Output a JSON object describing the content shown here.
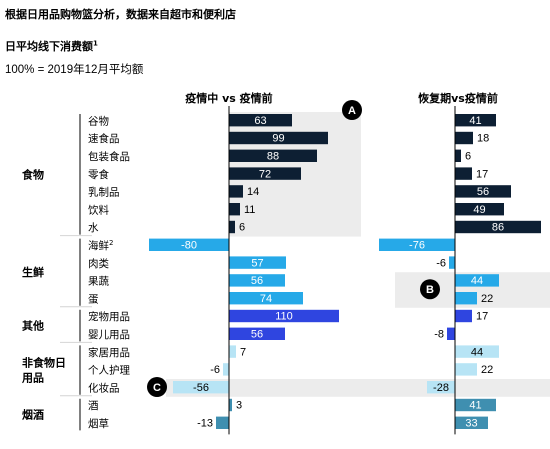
{
  "header": {
    "title": "根据日用品购物篮分析，数据来自超市和便利店",
    "subtitle_main": "日平均线下消费额",
    "subtitle_sup": "1",
    "baseline_note": "100% = 2019年12月平均额"
  },
  "chart_data": {
    "type": "bar",
    "orientation": "horizontal",
    "panels": [
      {
        "title": "疫情中 vs 疫情前",
        "series_key": "during"
      },
      {
        "title": "恢复期vs疫情前",
        "series_key": "recovery"
      }
    ],
    "groups": [
      {
        "name": "食物",
        "items": [
          {
            "label": "谷物",
            "sup": "",
            "during": 63,
            "recovery": 41
          },
          {
            "label": "速食品",
            "sup": "",
            "during": 99,
            "recovery": 18
          },
          {
            "label": "包装食品",
            "sup": "",
            "during": 88,
            "recovery": 6
          },
          {
            "label": "零食",
            "sup": "",
            "during": 72,
            "recovery": 17
          },
          {
            "label": "乳制品",
            "sup": "",
            "during": 14,
            "recovery": 56
          },
          {
            "label": "饮料",
            "sup": "",
            "during": 11,
            "recovery": 49
          },
          {
            "label": "水",
            "sup": "",
            "during": 6,
            "recovery": 86
          }
        ]
      },
      {
        "name": "生鲜",
        "items": [
          {
            "label": "海鲜",
            "sup": "2",
            "during": -80,
            "recovery": -76
          },
          {
            "label": "肉类",
            "sup": "",
            "during": 57,
            "recovery": -6
          },
          {
            "label": "果蔬",
            "sup": "",
            "during": 56,
            "recovery": 44
          },
          {
            "label": "蛋",
            "sup": "",
            "during": 74,
            "recovery": 22
          }
        ]
      },
      {
        "name": "其他",
        "items": [
          {
            "label": "宠物用品",
            "sup": "",
            "during": 110,
            "recovery": 17
          },
          {
            "label": "婴儿用品",
            "sup": "",
            "during": 56,
            "recovery": -8
          }
        ]
      },
      {
        "name": "非食物日用品",
        "name_lines": [
          "非食物日",
          "用品"
        ],
        "items": [
          {
            "label": "家居用品",
            "sup": "",
            "during": 7,
            "recovery": 44
          },
          {
            "label": "个人护理",
            "sup": "",
            "during": -6,
            "recovery": 22
          },
          {
            "label": "化妆品",
            "sup": "",
            "during": -56,
            "recovery": -28
          }
        ]
      },
      {
        "name": "烟酒",
        "items": [
          {
            "label": "酒",
            "sup": "",
            "during": 3,
            "recovery": 41
          },
          {
            "label": "烟草",
            "sup": "",
            "during": -13,
            "recovery": 33
          }
        ]
      }
    ],
    "highlights": [
      {
        "badge": "A",
        "panel": "during",
        "from_item": "谷物",
        "to_item": "水"
      },
      {
        "badge": "B",
        "panel": "recovery",
        "from_item": "果蔬",
        "to_item": "蛋"
      },
      {
        "badge": "C",
        "panel": "during",
        "from_item": "化妆品",
        "to_item": "化妆品"
      }
    ],
    "colors": {
      "食物": "#0d1f33",
      "生鲜": "#26a9e8",
      "其他": "#2f45e0",
      "非食物日用品": "#b7e4f5",
      "烟酒": "#3f8fb0",
      "highlight_band": "#ececec",
      "badge": "#000000"
    }
  }
}
